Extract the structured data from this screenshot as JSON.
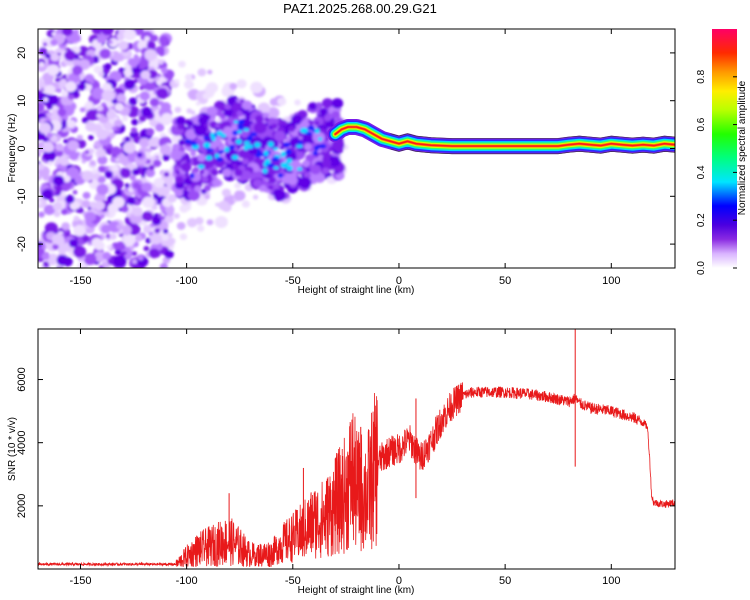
{
  "title": "PAZ1.2025.268.00.29.G21",
  "chart_data": [
    {
      "type": "heatmap",
      "name": "spectrogram",
      "xlabel": "Height of straight line (km)",
      "ylabel": "Frequency (Hz)",
      "xlim": [
        -170,
        130
      ],
      "ylim": [
        -25,
        25
      ],
      "xticks": [
        -150,
        -100,
        -50,
        0,
        50,
        100
      ],
      "yticks": [
        -20,
        -10,
        0,
        10,
        20
      ],
      "colorbar": {
        "label": "Normalized spectral amplitude",
        "range": [
          0,
          1
        ],
        "ticks": [
          "0.0",
          "0.2",
          "0.4",
          "0.6",
          "0.8"
        ],
        "tick_values": [
          0.0,
          0.2,
          0.4,
          0.6,
          0.8
        ]
      },
      "ridge": {
        "description": "dominant frequency trace",
        "x": [
          -170,
          -150,
          -130,
          -110,
          -100,
          -90,
          -80,
          -70,
          -60,
          -50,
          -40,
          -30,
          -25,
          -20,
          -15,
          -10,
          -5,
          0,
          10,
          20,
          40,
          60,
          80,
          100,
          120,
          130
        ],
        "y": [
          0,
          0,
          0,
          1,
          4,
          2,
          0,
          2,
          3,
          0,
          -1,
          3,
          4,
          4,
          3,
          2,
          1,
          1,
          0.5,
          0.5,
          0.5,
          0.5,
          0.5,
          0.5,
          0.5,
          0.5
        ]
      }
    },
    {
      "type": "line",
      "name": "snr",
      "xlabel": "Height of straight line (km)",
      "ylabel": "SNR (10 * v/v)",
      "xlim": [
        -170,
        130
      ],
      "ylim": [
        0,
        7600
      ],
      "xticks": [
        -150,
        -100,
        -50,
        0,
        50,
        100
      ],
      "yticks": [
        2000,
        4000,
        6000
      ],
      "color": "#e8191a",
      "series": [
        {
          "name": "SNR",
          "x": [
            -170,
            -160,
            -150,
            -140,
            -130,
            -120,
            -110,
            -105,
            -100,
            -95,
            -90,
            -85,
            -80,
            -75,
            -70,
            -65,
            -60,
            -55,
            -50,
            -45,
            -40,
            -35,
            -30,
            -25,
            -22,
            -20,
            -15,
            -10,
            -5,
            0,
            5,
            10,
            15,
            20,
            25,
            30,
            35,
            40,
            50,
            60,
            70,
            80,
            83,
            85,
            90,
            100,
            110,
            115,
            117,
            118,
            119,
            120,
            125,
            130
          ],
          "y": [
            150,
            150,
            150,
            150,
            150,
            150,
            150,
            150,
            400,
            600,
            700,
            800,
            900,
            700,
            450,
            450,
            500,
            800,
            1000,
            1200,
            1500,
            1600,
            2000,
            2400,
            3000,
            2500,
            2400,
            3400,
            3700,
            3800,
            4100,
            3500,
            4000,
            4700,
            5200,
            5500,
            5600,
            5600,
            5600,
            5550,
            5450,
            5300,
            5400,
            5250,
            5100,
            5000,
            4800,
            4650,
            4500,
            3600,
            2300,
            2100,
            2050,
            2100
          ]
        }
      ],
      "spikes": {
        "x": [
          -80,
          -45,
          -30,
          -24,
          -18,
          -12,
          8,
          83
        ],
        "y": [
          2400,
          3200,
          3500,
          3600,
          4500,
          3900,
          5400,
          7600
        ]
      }
    }
  ]
}
